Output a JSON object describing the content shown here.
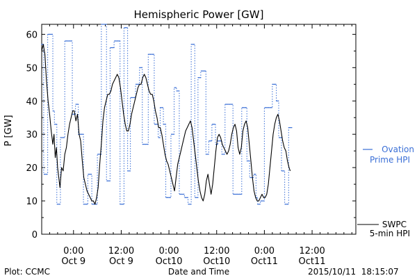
{
  "footer": {
    "plot_label": "Plot: CCMC",
    "timestamp": "2015/10/11  18:15:07"
  },
  "chart_data": {
    "type": "line",
    "title": "Hemispheric Power [GW]",
    "xlabel": "Date and Time",
    "ylabel": "P [GW]",
    "ylim": [
      0,
      63
    ],
    "xlim_hours": [
      -8,
      71
    ],
    "x_unit": "hours from 2015-10-09 00:00",
    "yticks": [
      0,
      10,
      20,
      30,
      40,
      50,
      60
    ],
    "grid": false,
    "xticks": [
      {
        "hour": 0,
        "time": "0:00",
        "date": "Oct 9"
      },
      {
        "hour": 12,
        "time": "12:00",
        "date": "Oct 9"
      },
      {
        "hour": 24,
        "time": "0:00",
        "date": "Oct10"
      },
      {
        "hour": 36,
        "time": "12:00",
        "date": "Oct10"
      },
      {
        "hour": 48,
        "time": "0:00",
        "date": "Oct11"
      },
      {
        "hour": 60,
        "time": "12:00",
        "date": "Oct11"
      }
    ],
    "legend_placement": "right",
    "series": [
      {
        "name": "Ovation Prime HPI",
        "legend_lines": [
          "Ovation",
          "Prime HPI"
        ],
        "color": "#3a6fd6",
        "style": "step-dotted",
        "points": [
          [
            -8.1,
            57
          ],
          [
            -7.5,
            18
          ],
          [
            -6.5,
            60
          ],
          [
            -5.2,
            37
          ],
          [
            -4.8,
            33
          ],
          [
            -4.2,
            9
          ],
          [
            -3.3,
            29
          ],
          [
            -2.2,
            58
          ],
          [
            -0.3,
            36
          ],
          [
            0.5,
            39
          ],
          [
            1.2,
            30
          ],
          [
            2.5,
            9
          ],
          [
            3.6,
            18
          ],
          [
            4.6,
            9
          ],
          [
            6.0,
            24
          ],
          [
            7.0,
            63
          ],
          [
            8.3,
            16
          ],
          [
            9.2,
            56
          ],
          [
            10.2,
            58
          ],
          [
            11.7,
            9
          ],
          [
            12.7,
            62
          ],
          [
            13.6,
            19
          ],
          [
            14.3,
            41
          ],
          [
            15.6,
            45
          ],
          [
            16.6,
            50
          ],
          [
            17.3,
            27
          ],
          [
            18.8,
            54
          ],
          [
            20.3,
            33
          ],
          [
            21.3,
            29
          ],
          [
            21.8,
            38
          ],
          [
            22.6,
            33
          ],
          [
            23.2,
            11
          ],
          [
            24.5,
            30
          ],
          [
            25.3,
            44
          ],
          [
            25.9,
            43
          ],
          [
            26.6,
            12
          ],
          [
            27.9,
            11
          ],
          [
            28.8,
            9
          ],
          [
            29.6,
            57
          ],
          [
            30.5,
            11
          ],
          [
            31.3,
            47
          ],
          [
            32.0,
            49
          ],
          [
            33.3,
            24
          ],
          [
            34.0,
            28
          ],
          [
            34.8,
            33
          ],
          [
            35.7,
            27
          ],
          [
            36.3,
            28
          ],
          [
            37.3,
            24
          ],
          [
            38.1,
            39
          ],
          [
            40.1,
            12
          ],
          [
            42.3,
            38
          ],
          [
            43.6,
            22
          ],
          [
            44.3,
            17
          ],
          [
            45.3,
            18
          ],
          [
            45.9,
            11
          ],
          [
            46.3,
            9
          ],
          [
            47.0,
            10
          ],
          [
            48.0,
            38
          ],
          [
            50.0,
            45
          ],
          [
            51.0,
            40
          ],
          [
            51.6,
            29
          ],
          [
            52.3,
            19
          ],
          [
            53.1,
            9
          ],
          [
            54.1,
            32
          ],
          [
            54.6,
            32
          ]
        ]
      },
      {
        "name": "SWPC 5-min HPI",
        "legend_lines": [
          "SWPC",
          "5-min HPI"
        ],
        "color": "#000000",
        "style": "solid",
        "points": [
          [
            -8.0,
            55
          ],
          [
            -7.6,
            57
          ],
          [
            -7.2,
            54
          ],
          [
            -6.8,
            46
          ],
          [
            -6.4,
            40
          ],
          [
            -6.0,
            36
          ],
          [
            -5.6,
            31
          ],
          [
            -5.2,
            27
          ],
          [
            -4.9,
            30
          ],
          [
            -4.6,
            23
          ],
          [
            -4.3,
            26
          ],
          [
            -4.0,
            20
          ],
          [
            -3.7,
            17
          ],
          [
            -3.4,
            14
          ],
          [
            -3.0,
            20
          ],
          [
            -2.6,
            19
          ],
          [
            -2.2,
            24
          ],
          [
            -1.8,
            26
          ],
          [
            -1.4,
            30
          ],
          [
            -1.0,
            33
          ],
          [
            -0.6,
            35
          ],
          [
            -0.2,
            37
          ],
          [
            0.2,
            37
          ],
          [
            0.6,
            34
          ],
          [
            1.0,
            36
          ],
          [
            1.4,
            30
          ],
          [
            1.8,
            28
          ],
          [
            2.2,
            22
          ],
          [
            2.6,
            17
          ],
          [
            3.0,
            15
          ],
          [
            3.4,
            13
          ],
          [
            3.8,
            12
          ],
          [
            4.2,
            11
          ],
          [
            4.6,
            10
          ],
          [
            5.0,
            10
          ],
          [
            5.4,
            9
          ],
          [
            5.8,
            11
          ],
          [
            6.2,
            14
          ],
          [
            6.6,
            21
          ],
          [
            7.0,
            27
          ],
          [
            7.4,
            34
          ],
          [
            7.8,
            38
          ],
          [
            8.2,
            40
          ],
          [
            8.6,
            42
          ],
          [
            9.0,
            42
          ],
          [
            9.4,
            43
          ],
          [
            9.8,
            45
          ],
          [
            10.2,
            46
          ],
          [
            10.6,
            47
          ],
          [
            11.0,
            48
          ],
          [
            11.4,
            47
          ],
          [
            11.8,
            44
          ],
          [
            12.2,
            40
          ],
          [
            12.6,
            36
          ],
          [
            13.0,
            33
          ],
          [
            13.4,
            31
          ],
          [
            13.8,
            31
          ],
          [
            14.2,
            33
          ],
          [
            14.6,
            36
          ],
          [
            15.0,
            38
          ],
          [
            15.4,
            40
          ],
          [
            15.8,
            42
          ],
          [
            16.2,
            44
          ],
          [
            16.6,
            45
          ],
          [
            17.0,
            45
          ],
          [
            17.4,
            47
          ],
          [
            17.8,
            48
          ],
          [
            18.2,
            47
          ],
          [
            18.6,
            45
          ],
          [
            19.0,
            43
          ],
          [
            19.4,
            42
          ],
          [
            19.8,
            42
          ],
          [
            20.2,
            40
          ],
          [
            20.6,
            37
          ],
          [
            21.0,
            35
          ],
          [
            21.4,
            32
          ],
          [
            21.8,
            32
          ],
          [
            22.2,
            30
          ],
          [
            22.6,
            27
          ],
          [
            23.0,
            24
          ],
          [
            23.4,
            22
          ],
          [
            23.8,
            21
          ],
          [
            24.2,
            19
          ],
          [
            24.6,
            17
          ],
          [
            25.0,
            15
          ],
          [
            25.4,
            13
          ],
          [
            25.8,
            17
          ],
          [
            26.2,
            21
          ],
          [
            26.6,
            23
          ],
          [
            27.0,
            25
          ],
          [
            27.4,
            27
          ],
          [
            27.8,
            29
          ],
          [
            28.2,
            31
          ],
          [
            28.6,
            32
          ],
          [
            29.0,
            33
          ],
          [
            29.4,
            34
          ],
          [
            29.8,
            32
          ],
          [
            30.2,
            28
          ],
          [
            30.6,
            24
          ],
          [
            31.0,
            20
          ],
          [
            31.4,
            16
          ],
          [
            31.8,
            13
          ],
          [
            32.2,
            11
          ],
          [
            32.6,
            10
          ],
          [
            33.0,
            12
          ],
          [
            33.4,
            16
          ],
          [
            33.8,
            18
          ],
          [
            34.2,
            15
          ],
          [
            34.6,
            12
          ],
          [
            35.0,
            15
          ],
          [
            35.4,
            20
          ],
          [
            35.8,
            25
          ],
          [
            36.2,
            29
          ],
          [
            36.6,
            30
          ],
          [
            37.0,
            29
          ],
          [
            37.4,
            27
          ],
          [
            37.8,
            26
          ],
          [
            38.2,
            25
          ],
          [
            38.6,
            24
          ],
          [
            39.0,
            25
          ],
          [
            39.4,
            27
          ],
          [
            39.8,
            30
          ],
          [
            40.2,
            32
          ],
          [
            40.6,
            33
          ],
          [
            41.0,
            31
          ],
          [
            41.4,
            26
          ],
          [
            41.8,
            24
          ],
          [
            42.2,
            26
          ],
          [
            42.6,
            31
          ],
          [
            43.0,
            33
          ],
          [
            43.4,
            34
          ],
          [
            43.8,
            32
          ],
          [
            44.2,
            27
          ],
          [
            44.6,
            22
          ],
          [
            45.0,
            17
          ],
          [
            45.4,
            13
          ],
          [
            45.8,
            11
          ],
          [
            46.2,
            10
          ],
          [
            46.6,
            10
          ],
          [
            47.0,
            11
          ],
          [
            47.4,
            12
          ],
          [
            47.8,
            11
          ],
          [
            48.2,
            11
          ],
          [
            48.6,
            12
          ],
          [
            49.0,
            15
          ],
          [
            49.4,
            20
          ],
          [
            49.8,
            25
          ],
          [
            50.2,
            30
          ],
          [
            50.6,
            33
          ],
          [
            51.0,
            35
          ],
          [
            51.4,
            36
          ],
          [
            51.8,
            34
          ],
          [
            52.2,
            31
          ],
          [
            52.6,
            28
          ],
          [
            53.0,
            26
          ],
          [
            53.4,
            25
          ],
          [
            53.8,
            22
          ],
          [
            54.2,
            20
          ],
          [
            54.5,
            19
          ]
        ]
      }
    ]
  }
}
